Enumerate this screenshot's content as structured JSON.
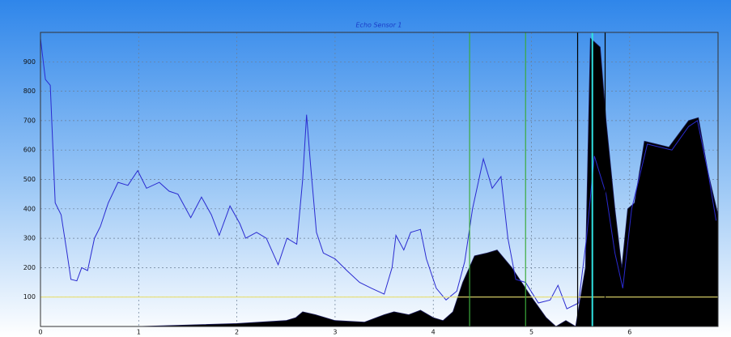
{
  "chart_data": {
    "type": "line",
    "title": "Echo Sensor 1",
    "xlim": [
      0,
      6.9
    ],
    "ylim": [
      0,
      1000
    ],
    "xticks": [
      0,
      1,
      2,
      3,
      4,
      5,
      6
    ],
    "yticks": [
      100,
      200,
      300,
      400,
      500,
      600,
      700,
      800,
      900
    ],
    "grid": true,
    "series": [
      {
        "color": "#000000",
        "fill": true,
        "x": [
          0,
          1.0,
          2.0,
          2.5,
          2.6,
          2.67,
          2.8,
          3.0,
          3.3,
          3.5,
          3.6,
          3.75,
          3.87,
          4.0,
          4.1,
          4.2,
          4.3,
          4.42,
          4.55,
          4.65,
          4.8,
          5.0,
          5.15,
          5.25,
          5.35,
          5.45,
          5.55,
          5.6,
          5.7,
          5.76,
          5.85,
          5.92,
          5.98,
          6.05,
          6.15,
          6.4,
          6.6,
          6.7,
          6.8,
          6.9
        ],
        "values": [
          0,
          0,
          10,
          20,
          30,
          50,
          40,
          20,
          15,
          40,
          50,
          40,
          55,
          30,
          20,
          50,
          150,
          240,
          250,
          260,
          200,
          100,
          30,
          0,
          20,
          0,
          200,
          980,
          950,
          700,
          400,
          200,
          400,
          420,
          630,
          610,
          700,
          710,
          520,
          380
        ]
      },
      {
        "color": "#2a2ad0",
        "fill": false,
        "x": [
          0,
          0.05,
          0.1,
          0.15,
          0.21,
          0.27,
          0.31,
          0.37,
          0.42,
          0.48,
          0.55,
          0.61,
          0.69,
          0.79,
          0.89,
          0.99,
          1.08,
          1.21,
          1.31,
          1.4,
          1.53,
          1.64,
          1.74,
          1.82,
          1.93,
          2.03,
          2.09,
          2.2,
          2.3,
          2.42,
          2.51,
          2.61,
          2.67,
          2.71,
          2.75,
          2.81,
          2.88,
          3.0,
          3.12,
          3.25,
          3.37,
          3.5,
          3.58,
          3.62,
          3.7,
          3.77,
          3.87,
          3.93,
          4.03,
          4.13,
          4.24,
          4.32,
          4.4,
          4.51,
          4.6,
          4.69,
          4.76,
          4.84,
          4.94,
          5.07,
          5.19,
          5.27,
          5.36,
          5.48,
          5.56,
          5.64,
          5.76,
          5.85,
          5.93,
          6.02,
          6.18,
          6.43,
          6.6,
          6.69,
          6.8,
          6.88
        ],
        "values": [
          980,
          840,
          820,
          420,
          380,
          250,
          160,
          155,
          200,
          190,
          300,
          340,
          420,
          490,
          480,
          530,
          470,
          490,
          460,
          450,
          370,
          440,
          380,
          310,
          410,
          350,
          300,
          320,
          300,
          210,
          300,
          280,
          500,
          720,
          550,
          320,
          250,
          230,
          190,
          150,
          130,
          110,
          200,
          310,
          260,
          320,
          330,
          230,
          130,
          90,
          120,
          220,
          400,
          570,
          470,
          510,
          300,
          160,
          150,
          80,
          90,
          140,
          60,
          80,
          300,
          580,
          450,
          250,
          130,
          400,
          620,
          600,
          680,
          700,
          520,
          360
        ]
      }
    ],
    "hlines": [
      {
        "value": 100,
        "color": "#e8e070"
      }
    ],
    "vlines": [
      {
        "value": 4.37,
        "color": "#3caa3c"
      },
      {
        "value": 4.94,
        "color": "#3caa3c"
      },
      {
        "value": 5.47,
        "color": "#000000"
      },
      {
        "value": 5.62,
        "color": "#30e0e0"
      },
      {
        "value": 5.75,
        "color": "#000000"
      }
    ]
  }
}
